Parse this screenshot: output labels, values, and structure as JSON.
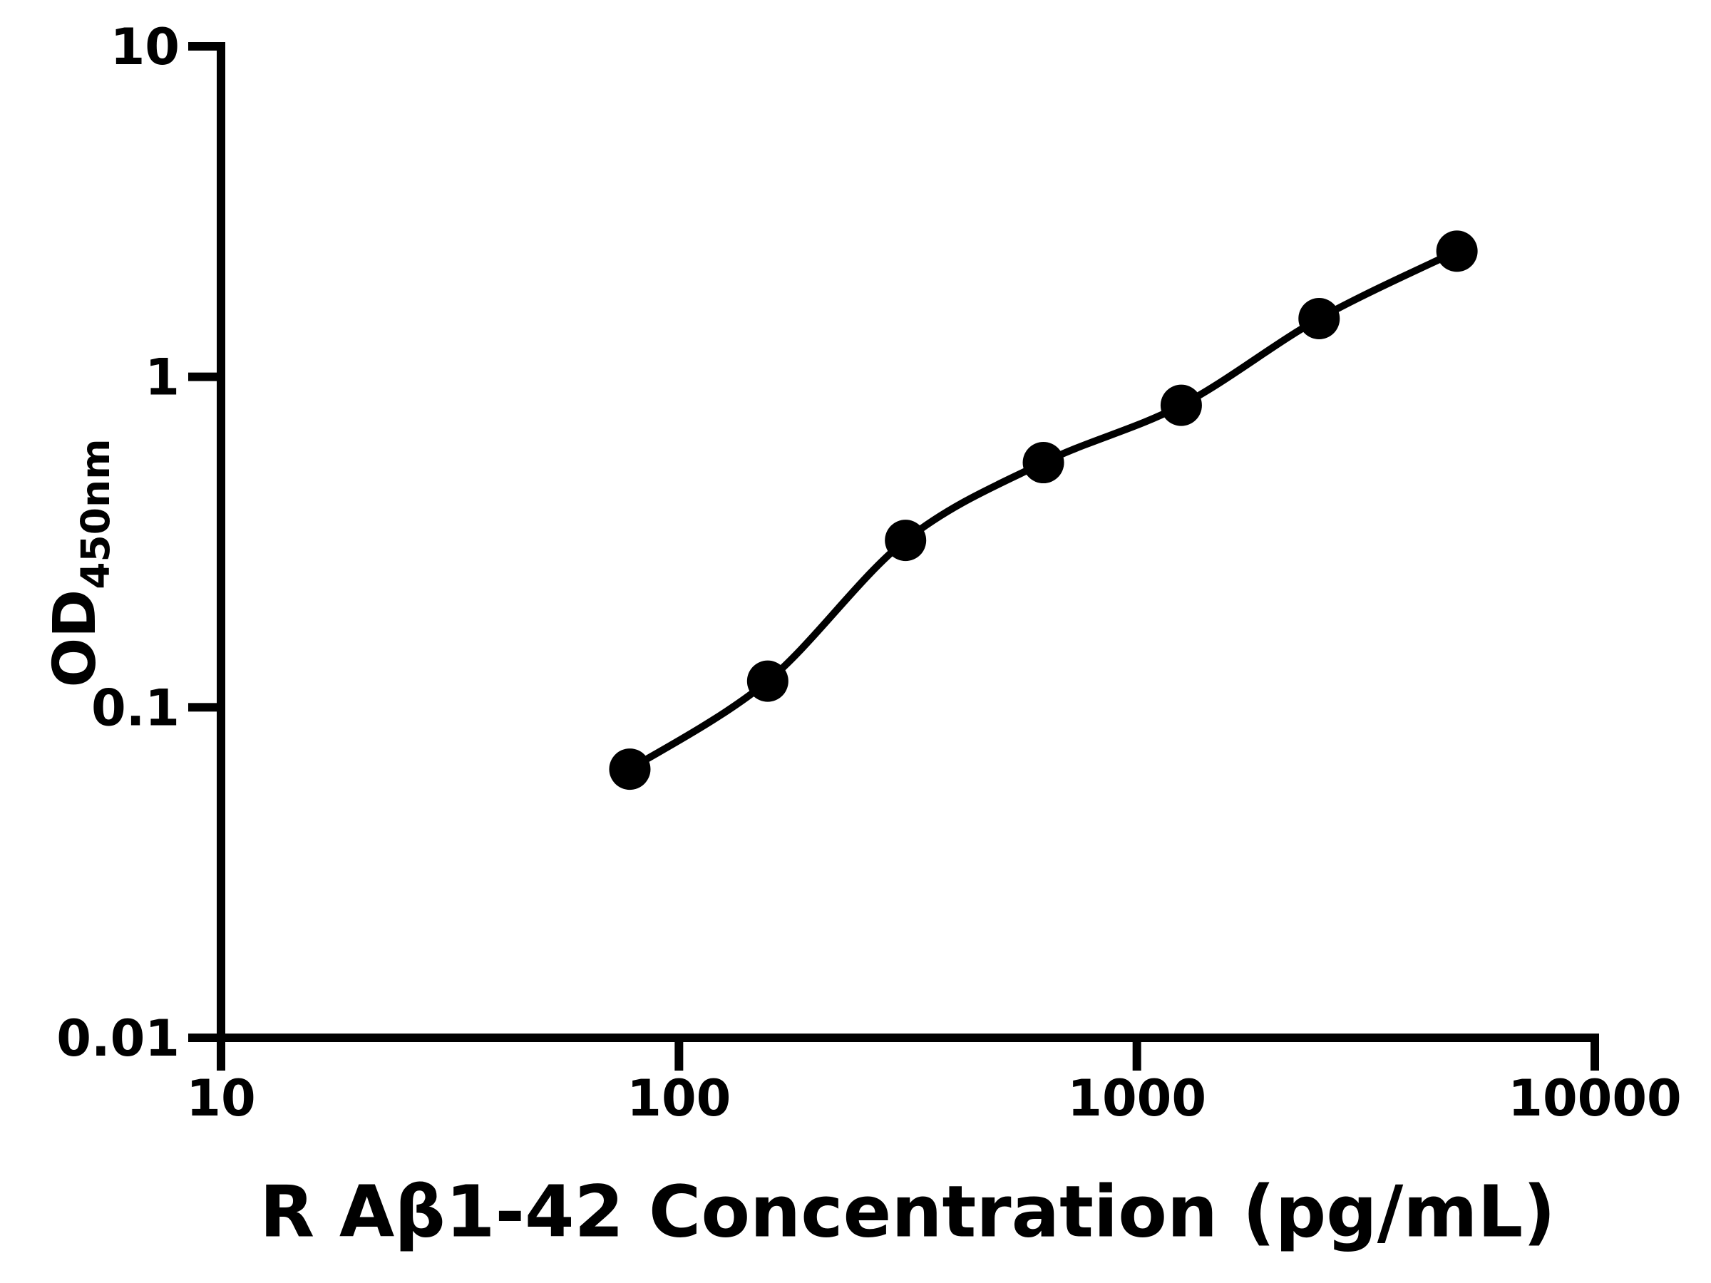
{
  "figure": {
    "background_color": "#ffffff",
    "foreground_color": "#000000"
  },
  "chart_data": {
    "type": "scatter",
    "title": "",
    "xlabel": "R Aβ1-42 Concentration (pg/mL)",
    "ylabel_main": "OD",
    "ylabel_sub": "450nm",
    "x_scale": "log",
    "y_scale": "log",
    "xlim": [
      10,
      10000
    ],
    "ylim": [
      0.01,
      10
    ],
    "grid": "off",
    "legend": "none",
    "x_ticks": [
      {
        "value": 10,
        "label": "10"
      },
      {
        "value": 100,
        "label": "100"
      },
      {
        "value": 1000,
        "label": "1000"
      },
      {
        "value": 10000,
        "label": "10000"
      }
    ],
    "y_ticks": [
      {
        "value": 10,
        "label": "10"
      },
      {
        "value": 1,
        "label": "1"
      },
      {
        "value": 0.1,
        "label": "0.1"
      },
      {
        "value": 0.01,
        "label": "0.01"
      }
    ],
    "series": [
      {
        "name": "standard-curve",
        "marker": "filled-circle",
        "color": "#000000",
        "line": "smooth",
        "points": [
          {
            "x": 78.125,
            "y": 0.065
          },
          {
            "x": 156.25,
            "y": 0.12
          },
          {
            "x": 312.5,
            "y": 0.32
          },
          {
            "x": 625,
            "y": 0.55
          },
          {
            "x": 1250,
            "y": 0.82
          },
          {
            "x": 2500,
            "y": 1.5
          },
          {
            "x": 5000,
            "y": 2.4
          }
        ]
      }
    ]
  }
}
